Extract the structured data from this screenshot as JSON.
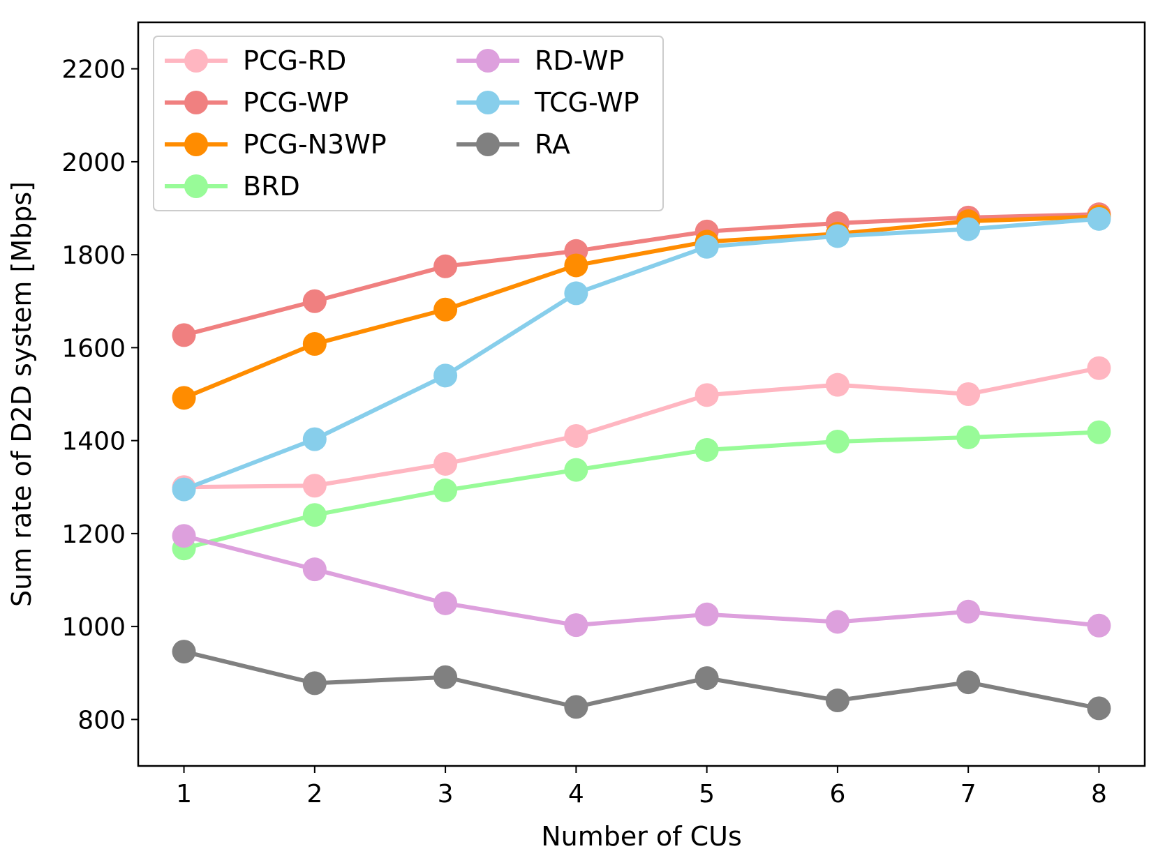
{
  "chart_data": {
    "type": "line",
    "title": "",
    "xlabel": "Number of CUs",
    "ylabel": "Sum rate of D2D system [Mbps]",
    "x": [
      1,
      2,
      3,
      4,
      5,
      6,
      7,
      8
    ],
    "xticks": [
      "1",
      "2",
      "3",
      "4",
      "5",
      "6",
      "7",
      "8"
    ],
    "xlim": [
      0.65,
      8.35
    ],
    "ylim": [
      700,
      2300
    ],
    "yticks": [
      "800",
      "1000",
      "1200",
      "1400",
      "1600",
      "1800",
      "2000",
      "2200"
    ],
    "grid": false,
    "legend_position": "top-left",
    "legend_columns": 2,
    "series": [
      {
        "name": "PCG-RD",
        "color": "#ffb6c1",
        "values": [
          1300,
          1303,
          1350,
          1410,
          1498,
          1520,
          1500,
          1556
        ]
      },
      {
        "name": "PCG-WP",
        "color": "#f08080",
        "values": [
          1627,
          1700,
          1775,
          1808,
          1850,
          1868,
          1880,
          1887
        ]
      },
      {
        "name": "PCG-N3WP",
        "color": "#ff8c00",
        "values": [
          1492,
          1608,
          1682,
          1777,
          1828,
          1845,
          1872,
          1882
        ]
      },
      {
        "name": "BRD",
        "color": "#98fb98",
        "values": [
          1168,
          1240,
          1293,
          1337,
          1380,
          1398,
          1407,
          1418
        ]
      },
      {
        "name": "RD-WP",
        "color": "#dda0dd",
        "values": [
          1195,
          1123,
          1050,
          1003,
          1026,
          1010,
          1032,
          1002
        ]
      },
      {
        "name": "TCG-WP",
        "color": "#87ceeb",
        "values": [
          1295,
          1403,
          1540,
          1717,
          1817,
          1840,
          1855,
          1877
        ]
      },
      {
        "name": "RA",
        "color": "#808080",
        "values": [
          946,
          878,
          891,
          827,
          889,
          841,
          880,
          824
        ]
      }
    ]
  }
}
